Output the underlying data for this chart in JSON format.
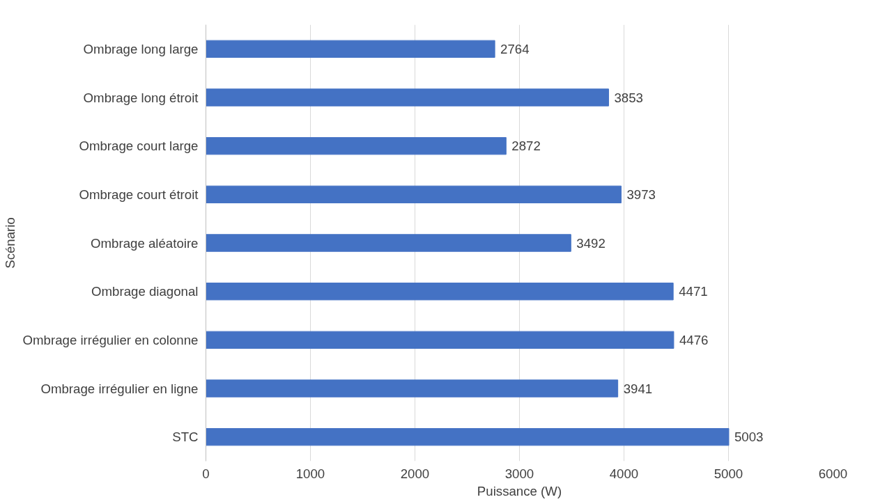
{
  "chart_data": {
    "type": "bar",
    "orientation": "horizontal",
    "xlabel": "Puissance (W)",
    "ylabel": "Scénario",
    "categories": [
      "Ombrage long large",
      "Ombrage long étroit",
      "Ombrage court large",
      "Ombrage court étroit",
      "Ombrage aléatoire",
      "Ombrage diagonal",
      "Ombrage irrégulier en colonne",
      "Ombrage irrégulier en ligne",
      "STC"
    ],
    "values": [
      2764,
      3853,
      2872,
      3973,
      3492,
      4471,
      4476,
      3941,
      5003
    ],
    "color": "#4472c4",
    "xlim": [
      0,
      6000
    ],
    "xticks": [
      0,
      1000,
      2000,
      3000,
      4000,
      5000,
      6000
    ],
    "grid": "x",
    "data_labels": true
  }
}
